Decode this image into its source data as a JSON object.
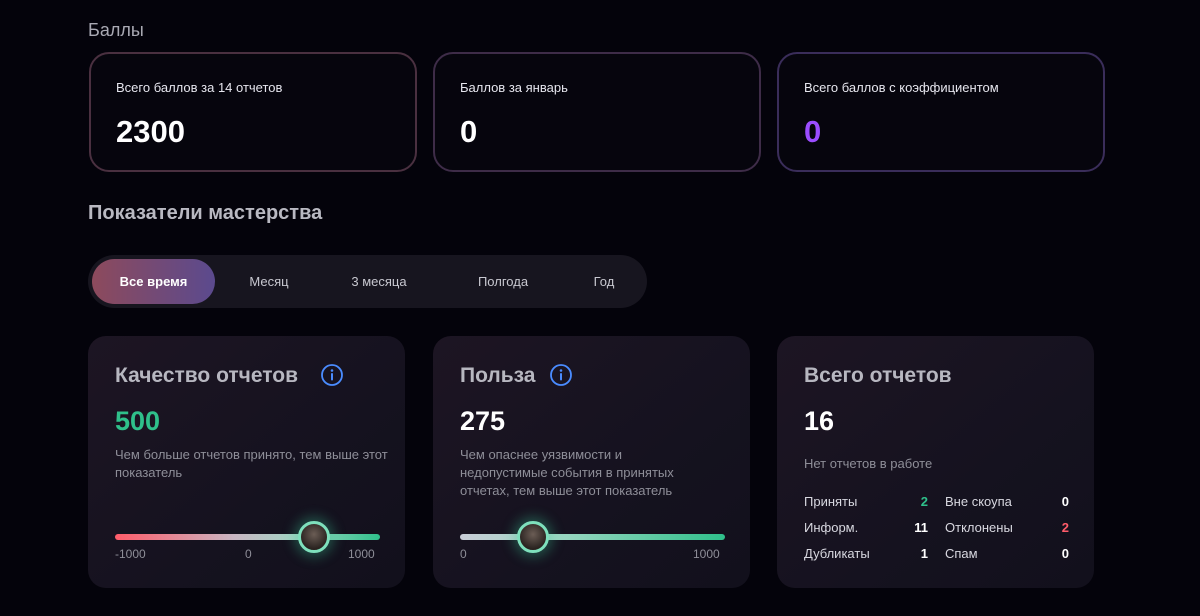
{
  "scores": {
    "section_title": "Баллы",
    "cards": [
      {
        "label": "Всего баллов за 14 отчетов",
        "value": "2300"
      },
      {
        "label": "Баллов за январь",
        "value": "0"
      },
      {
        "label": "Всего баллов с коэффициентом",
        "value": "0"
      }
    ],
    "accent_purple": "#9b4dff"
  },
  "mastery": {
    "section_title": "Показатели мастерства",
    "tabs": [
      {
        "label": "Все время",
        "active": true
      },
      {
        "label": "Месяц",
        "active": false
      },
      {
        "label": "3 месяца",
        "active": false
      },
      {
        "label": "Полгода",
        "active": false
      },
      {
        "label": "Год",
        "active": false
      }
    ],
    "quality": {
      "title": "Качество отчетов",
      "value": "500",
      "description": "Чем больше отчетов принято, тем выше этот показатель",
      "slider": {
        "min": "-1000",
        "mid": "0",
        "max": "1000",
        "current": 500
      }
    },
    "usefulness": {
      "title": "Польза",
      "value": "275",
      "description": "Чем опаснее уязвимости и недопустимые события в принятых отчетах, тем выше этот показатель",
      "slider": {
        "min": "0",
        "max": "1000",
        "current": 275
      }
    },
    "total": {
      "title": "Всего отчетов",
      "value": "16",
      "no_work": "Нет отчетов в работе",
      "stats": [
        {
          "label": "Приняты",
          "value": "2",
          "color": "#2fc08b"
        },
        {
          "label": "Вне скоупа",
          "value": "0",
          "color": "#ffffff"
        },
        {
          "label": "Информ.",
          "value": "11",
          "color": "#ffffff"
        },
        {
          "label": "Отклонены",
          "value": "2",
          "color": "#ff5c6a"
        },
        {
          "label": "Дубликаты",
          "value": "1",
          "color": "#ffffff"
        },
        {
          "label": "Спам",
          "value": "0",
          "color": "#ffffff"
        }
      ]
    }
  },
  "icons": {
    "info": "info-circle-icon",
    "avatar": "user-avatar-icon"
  },
  "colors": {
    "green": "#2fc08b",
    "red": "#ff5c6a",
    "info_blue": "#4a8cff"
  }
}
